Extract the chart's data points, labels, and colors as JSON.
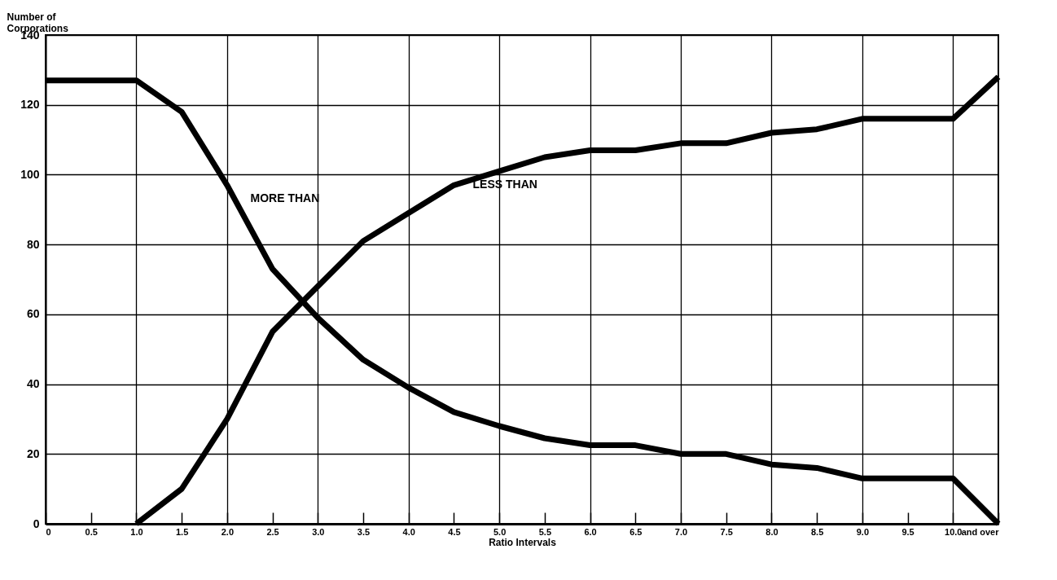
{
  "chart_data": {
    "type": "line",
    "xlabel": "Ratio Intervals",
    "ylabel": "Number of\nCorporations",
    "x": [
      0,
      0.5,
      1,
      1.5,
      2,
      2.5,
      3,
      3.5,
      4,
      4.5,
      5,
      5.5,
      6,
      6.5,
      7,
      7.5,
      8,
      8.5,
      9,
      9.5,
      10,
      10.5
    ],
    "series": [
      {
        "color": "#000000",
        "values": [
          127,
          127,
          127,
          118,
          97,
          73,
          59,
          47,
          39,
          32,
          28,
          24.5,
          22.5,
          22.5,
          20,
          20,
          17,
          16,
          13,
          13,
          13,
          0
        ]
      },
      {
        "color": "#000000",
        "values": [
          null,
          null,
          0,
          10,
          30,
          55,
          68,
          81,
          89,
          97,
          101,
          105,
          107,
          107,
          109,
          109,
          112,
          113,
          116,
          116,
          116,
          128
        ]
      }
    ],
    "annotations": [
      {
        "text": "MORE THAN",
        "x": 2.15,
        "y": 93
      },
      {
        "text": "LESS THAN",
        "x": 4.6,
        "y": 97
      }
    ],
    "xlim": [
      0,
      10.5
    ],
    "ylim": [
      0,
      140
    ],
    "xticks": [
      0,
      0.5,
      {
        "value": 1,
        "label": "1.0"
      },
      1.5,
      {
        "value": 2,
        "label": "2.0"
      },
      2.5,
      {
        "value": 3,
        "label": "3.0"
      },
      3.5,
      {
        "value": 4,
        "label": "4.0"
      },
      4.5,
      {
        "value": 5,
        "label": "5.0"
      },
      5.5,
      {
        "value": 6,
        "label": "6.0"
      },
      6.5,
      {
        "value": 7,
        "label": "7.0"
      },
      7.5,
      {
        "value": 8,
        "label": "8.0"
      },
      8.5,
      {
        "value": 9,
        "label": "9.0"
      },
      9.5,
      {
        "value": 10,
        "label": "10.0"
      },
      {
        "value": 10.5,
        "label": "and over"
      }
    ],
    "yticks": [
      0,
      20,
      40,
      60,
      80,
      100,
      120,
      140
    ],
    "grid": true,
    "legend": false,
    "marker": "none",
    "line_style": "solid"
  }
}
